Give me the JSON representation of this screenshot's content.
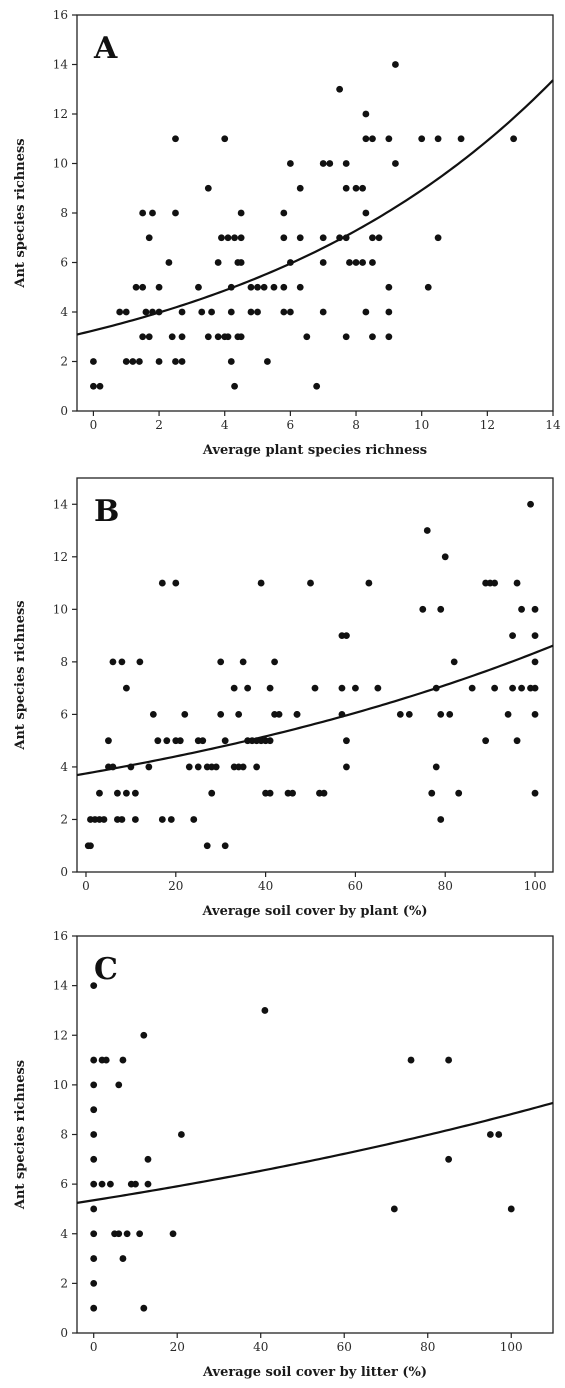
{
  "chart_data": [
    {
      "type": "scatter",
      "panel_label": "A",
      "xlabel": "Average plant species richness",
      "ylabel": "Ant species richness",
      "xlim": [
        -0.5,
        14
      ],
      "ylim": [
        0,
        16
      ],
      "xticks": [
        "0",
        "2",
        "4",
        "6",
        "8",
        "10",
        "12",
        "14"
      ],
      "yticks": [
        "0",
        "2",
        "4",
        "6",
        "8",
        "10",
        "12",
        "14",
        "16"
      ],
      "points": [
        [
          0.0,
          2
        ],
        [
          0.0,
          1
        ],
        [
          0.2,
          1
        ],
        [
          0.8,
          4
        ],
        [
          1.0,
          4
        ],
        [
          1.0,
          2
        ],
        [
          1.2,
          2
        ],
        [
          1.3,
          5
        ],
        [
          1.4,
          2
        ],
        [
          1.5,
          3
        ],
        [
          1.5,
          5
        ],
        [
          1.5,
          8
        ],
        [
          1.6,
          4
        ],
        [
          1.7,
          3
        ],
        [
          1.8,
          4
        ],
        [
          1.8,
          8
        ],
        [
          1.7,
          7
        ],
        [
          2.0,
          5
        ],
        [
          2.0,
          4
        ],
        [
          2.0,
          2
        ],
        [
          2.3,
          6
        ],
        [
          2.4,
          3
        ],
        [
          2.5,
          2
        ],
        [
          2.5,
          11
        ],
        [
          2.5,
          8
        ],
        [
          2.7,
          2
        ],
        [
          2.7,
          3
        ],
        [
          2.7,
          4
        ],
        [
          3.2,
          5
        ],
        [
          3.3,
          4
        ],
        [
          3.5,
          3
        ],
        [
          3.5,
          9
        ],
        [
          3.6,
          4
        ],
        [
          3.8,
          6
        ],
        [
          3.8,
          3
        ],
        [
          3.9,
          7
        ],
        [
          4.0,
          3
        ],
        [
          4.0,
          11
        ],
        [
          4.1,
          7
        ],
        [
          4.1,
          3
        ],
        [
          4.2,
          5
        ],
        [
          4.2,
          4
        ],
        [
          4.2,
          2
        ],
        [
          4.3,
          1
        ],
        [
          4.3,
          7
        ],
        [
          4.4,
          6
        ],
        [
          4.4,
          3
        ],
        [
          4.5,
          7
        ],
        [
          4.5,
          6
        ],
        [
          4.5,
          8
        ],
        [
          4.5,
          3
        ],
        [
          4.8,
          5
        ],
        [
          4.8,
          4
        ],
        [
          5.0,
          5
        ],
        [
          5.0,
          4
        ],
        [
          5.2,
          5
        ],
        [
          5.3,
          2
        ],
        [
          5.5,
          5
        ],
        [
          5.8,
          8
        ],
        [
          5.8,
          7
        ],
        [
          5.8,
          5
        ],
        [
          5.8,
          4
        ],
        [
          6.0,
          6
        ],
        [
          6.0,
          10
        ],
        [
          6.0,
          4
        ],
        [
          6.3,
          9
        ],
        [
          6.3,
          7
        ],
        [
          6.3,
          5
        ],
        [
          6.5,
          3
        ],
        [
          6.8,
          1
        ],
        [
          7.0,
          7
        ],
        [
          7.0,
          6
        ],
        [
          7.0,
          4
        ],
        [
          7.0,
          10
        ],
        [
          7.2,
          10
        ],
        [
          7.5,
          13
        ],
        [
          7.5,
          7
        ],
        [
          7.7,
          7
        ],
        [
          7.7,
          3
        ],
        [
          7.7,
          10
        ],
        [
          7.7,
          9
        ],
        [
          7.8,
          6
        ],
        [
          8.0,
          9
        ],
        [
          8.0,
          6
        ],
        [
          8.2,
          9
        ],
        [
          8.2,
          6
        ],
        [
          8.3,
          12
        ],
        [
          8.3,
          8
        ],
        [
          8.3,
          4
        ],
        [
          8.3,
          11
        ],
        [
          8.5,
          11
        ],
        [
          8.5,
          6
        ],
        [
          8.5,
          3
        ],
        [
          8.5,
          7
        ],
        [
          8.7,
          7
        ],
        [
          9.0,
          11
        ],
        [
          9.0,
          5
        ],
        [
          9.0,
          4
        ],
        [
          9.0,
          3
        ],
        [
          9.2,
          14
        ],
        [
          9.2,
          10
        ],
        [
          10.0,
          11
        ],
        [
          10.2,
          5
        ],
        [
          10.5,
          11
        ],
        [
          10.5,
          7
        ],
        [
          11.2,
          11
        ],
        [
          12.8,
          11
        ]
      ],
      "fit_curve": {
        "model": "exponential",
        "a": 3.25,
        "b": 0.101
      }
    },
    {
      "type": "scatter",
      "panel_label": "B",
      "xlabel": "Average soil cover by plant (%)",
      "ylabel": "Ant species richness",
      "xlim": [
        -2,
        104
      ],
      "ylim": [
        0,
        15
      ],
      "xticks": [
        "0",
        "20",
        "40",
        "60",
        "80",
        "100"
      ],
      "yticks": [
        "0",
        "2",
        "4",
        "6",
        "8",
        "10",
        "12",
        "14"
      ],
      "points": [
        [
          0.5,
          1
        ],
        [
          1,
          1
        ],
        [
          1,
          2
        ],
        [
          2,
          2
        ],
        [
          3,
          3
        ],
        [
          3,
          2
        ],
        [
          4,
          2
        ],
        [
          5,
          5
        ],
        [
          5,
          4
        ],
        [
          6,
          8
        ],
        [
          6,
          4
        ],
        [
          7,
          2
        ],
        [
          7,
          3
        ],
        [
          8,
          8
        ],
        [
          8,
          2
        ],
        [
          9,
          3
        ],
        [
          9,
          7
        ],
        [
          10,
          4
        ],
        [
          11,
          2
        ],
        [
          11,
          3
        ],
        [
          12,
          8
        ],
        [
          14,
          4
        ],
        [
          15,
          6
        ],
        [
          16,
          5
        ],
        [
          17,
          11
        ],
        [
          17,
          2
        ],
        [
          18,
          5
        ],
        [
          19,
          2
        ],
        [
          20,
          11
        ],
        [
          20,
          5
        ],
        [
          21,
          5
        ],
        [
          22,
          6
        ],
        [
          23,
          4
        ],
        [
          24,
          2
        ],
        [
          25,
          4
        ],
        [
          25,
          5
        ],
        [
          26,
          5
        ],
        [
          27,
          1
        ],
        [
          27,
          4
        ],
        [
          28,
          3
        ],
        [
          28,
          4
        ],
        [
          29,
          4
        ],
        [
          30,
          8
        ],
        [
          30,
          6
        ],
        [
          31,
          1
        ],
        [
          31,
          5
        ],
        [
          33,
          4
        ],
        [
          33,
          7
        ],
        [
          34,
          4
        ],
        [
          34,
          6
        ],
        [
          35,
          8
        ],
        [
          35,
          4
        ],
        [
          36,
          5
        ],
        [
          36,
          7
        ],
        [
          37,
          5
        ],
        [
          38,
          5
        ],
        [
          38,
          4
        ],
        [
          39,
          11
        ],
        [
          39,
          5
        ],
        [
          40,
          5
        ],
        [
          40,
          3
        ],
        [
          41,
          3
        ],
        [
          41,
          7
        ],
        [
          41,
          5
        ],
        [
          42,
          6
        ],
        [
          42,
          8
        ],
        [
          43,
          6
        ],
        [
          45,
          3
        ],
        [
          46,
          3
        ],
        [
          47,
          6
        ],
        [
          47,
          6
        ],
        [
          50,
          11
        ],
        [
          51,
          7
        ],
        [
          52,
          3
        ],
        [
          53,
          3
        ],
        [
          57,
          9
        ],
        [
          57,
          7
        ],
        [
          57,
          6
        ],
        [
          58,
          9
        ],
        [
          58,
          5
        ],
        [
          58,
          4
        ],
        [
          60,
          7
        ],
        [
          63,
          11
        ],
        [
          65,
          7
        ],
        [
          70,
          6
        ],
        [
          72,
          6
        ],
        [
          75,
          10
        ],
        [
          76,
          13
        ],
        [
          77,
          3
        ],
        [
          78,
          7
        ],
        [
          78,
          4
        ],
        [
          79,
          6
        ],
        [
          79,
          10
        ],
        [
          79,
          2
        ],
        [
          80,
          12
        ],
        [
          81,
          6
        ],
        [
          82,
          8
        ],
        [
          83,
          3
        ],
        [
          86,
          7
        ],
        [
          89,
          11
        ],
        [
          89,
          5
        ],
        [
          90,
          11
        ],
        [
          91,
          11
        ],
        [
          91,
          7
        ],
        [
          94,
          6
        ],
        [
          95,
          9
        ],
        [
          95,
          7
        ],
        [
          96,
          11
        ],
        [
          96,
          5
        ],
        [
          97,
          10
        ],
        [
          97,
          7
        ],
        [
          99,
          14
        ],
        [
          99,
          7
        ],
        [
          100,
          10
        ],
        [
          100,
          9
        ],
        [
          100,
          8
        ],
        [
          100,
          7
        ],
        [
          100,
          6
        ],
        [
          100,
          3
        ]
      ],
      "fit_curve": {
        "model": "exponential",
        "a": 3.75,
        "b": 0.008
      }
    },
    {
      "type": "scatter",
      "panel_label": "C",
      "xlabel": "Average soil cover by litter (%)",
      "ylabel": "Ant species richness",
      "xlim": [
        -4,
        110
      ],
      "ylim": [
        0,
        16
      ],
      "xticks": [
        "0",
        "20",
        "40",
        "60",
        "80",
        "100"
      ],
      "yticks": [
        "0",
        "2",
        "4",
        "6",
        "8",
        "10",
        "12",
        "14",
        "16"
      ],
      "points": [
        [
          0,
          14
        ],
        [
          0,
          11
        ],
        [
          0,
          10
        ],
        [
          0,
          9
        ],
        [
          0,
          8
        ],
        [
          0,
          7
        ],
        [
          0,
          6
        ],
        [
          0,
          5
        ],
        [
          0,
          4
        ],
        [
          0,
          3
        ],
        [
          0,
          2
        ],
        [
          0,
          1
        ],
        [
          2,
          11
        ],
        [
          2,
          6
        ],
        [
          3,
          11
        ],
        [
          4,
          6
        ],
        [
          5,
          4
        ],
        [
          6,
          4
        ],
        [
          6,
          10
        ],
        [
          7,
          11
        ],
        [
          7,
          3
        ],
        [
          8,
          4
        ],
        [
          9,
          6
        ],
        [
          10,
          6
        ],
        [
          11,
          4
        ],
        [
          12,
          12
        ],
        [
          12,
          1
        ],
        [
          13,
          7
        ],
        [
          13,
          6
        ],
        [
          19,
          4
        ],
        [
          21,
          8
        ],
        [
          41,
          13
        ],
        [
          72,
          5
        ],
        [
          76,
          11
        ],
        [
          85,
          11
        ],
        [
          85,
          7
        ],
        [
          95,
          8
        ],
        [
          97,
          8
        ],
        [
          100,
          5
        ]
      ],
      "fit_curve": {
        "model": "exponential",
        "a": 5.35,
        "b": 0.005
      }
    }
  ]
}
